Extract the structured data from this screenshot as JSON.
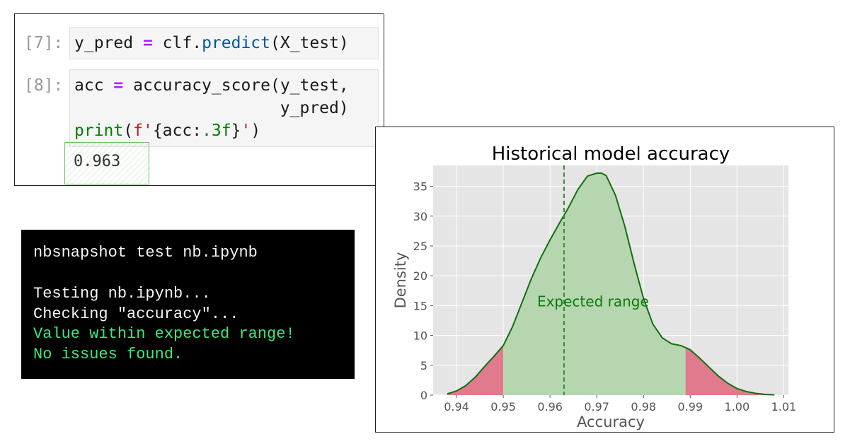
{
  "notebook": {
    "cells": [
      {
        "prompt": "[7]:",
        "code": {
          "lhs": "y_pred",
          "op": "=",
          "obj": "clf.",
          "method": "predict",
          "args": "(X_test)"
        }
      },
      {
        "prompt": "[8]:",
        "code": {
          "line1_lhs": "acc",
          "line1_op": "=",
          "line1_rest": "accuracy_score(y_test,",
          "line2": "y_pred)",
          "print_fn": "print",
          "paren_open": "(",
          "fstr_prefix": "f",
          "quote": "'",
          "fmt_open": "{acc:",
          "fmt_spec": ".3f",
          "fmt_close": "}",
          "paren_close": ")"
        },
        "output": "0.963"
      }
    ]
  },
  "terminal": {
    "lines": [
      "nbsnapshot test nb.ipynb",
      "",
      "Testing nb.ipynb...",
      "Checking \"accuracy\"...",
      "Value within expected range!",
      "No issues found."
    ],
    "colors": {
      "background": "#000000",
      "text": "#f5f5f5",
      "success": "#3fe87a"
    }
  },
  "chart_data": {
    "type": "area",
    "title": "Historical model accuracy",
    "xlabel": "Accuracy",
    "ylabel": "Density",
    "xlim": [
      0.935,
      1.011
    ],
    "ylim": [
      0,
      38.5
    ],
    "xticks": [
      0.94,
      0.95,
      0.96,
      0.97,
      0.98,
      0.99,
      1.0,
      1.01
    ],
    "xtick_labels": [
      "0.94",
      "0.95",
      "0.96",
      "0.97",
      "0.98",
      "0.99",
      "1.00",
      "1.01"
    ],
    "yticks": [
      0,
      5,
      10,
      15,
      20,
      25,
      30,
      35
    ],
    "ytick_labels": [
      "0",
      "5",
      "10",
      "15",
      "20",
      "25",
      "30",
      "35"
    ],
    "grid": true,
    "density_curve": {
      "x": [
        0.938,
        0.94,
        0.942,
        0.944,
        0.946,
        0.948,
        0.95,
        0.952,
        0.954,
        0.956,
        0.958,
        0.96,
        0.962,
        0.964,
        0.966,
        0.968,
        0.97,
        0.971,
        0.972,
        0.974,
        0.976,
        0.978,
        0.98,
        0.982,
        0.984,
        0.986,
        0.988,
        0.99,
        0.992,
        0.994,
        0.996,
        0.998,
        1.0,
        1.002,
        1.004,
        1.006,
        1.008
      ],
      "y": [
        0.2,
        0.7,
        1.6,
        3.0,
        4.8,
        6.5,
        8.3,
        11.5,
        15.5,
        19.5,
        23.0,
        26.0,
        28.8,
        31.5,
        34.5,
        36.7,
        37.2,
        37.2,
        36.8,
        33.5,
        28.3,
        22.0,
        16.2,
        11.9,
        9.6,
        8.6,
        8.3,
        7.6,
        6.2,
        4.7,
        3.2,
        2.0,
        1.1,
        0.6,
        0.3,
        0.12,
        0.05
      ]
    },
    "expected_range": [
      0.95,
      0.989
    ],
    "expected_range_label": "Expected range",
    "reference_value": 0.963,
    "colors": {
      "plot_background": "#e5e5e5",
      "curve": "#107010",
      "inside_fill": "#b6d6b0",
      "outside_fill": "#e07a8c",
      "reference_line": "#3a8a3a",
      "annotation": "#0d7a0d"
    }
  }
}
